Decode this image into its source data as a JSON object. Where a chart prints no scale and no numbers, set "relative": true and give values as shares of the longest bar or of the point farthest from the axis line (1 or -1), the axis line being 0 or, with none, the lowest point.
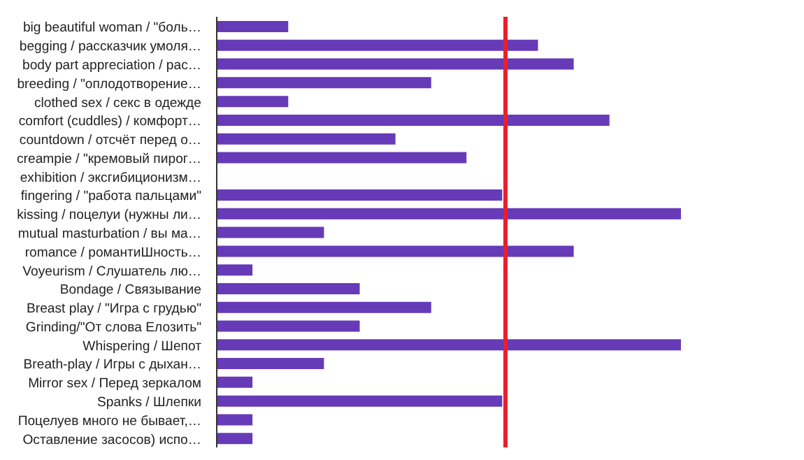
{
  "chart_data": {
    "type": "bar",
    "orientation": "horizontal",
    "relative": true,
    "categories": [
      "big beautiful woman / \"боль…",
      "begging / рассказчик умоля…",
      "body part appreciation / рас…",
      "breeding / \"оплодотворение…",
      "clothed sex / секс в одежде",
      "comfort (cuddles) / комфорт…",
      "countdown / отсчёт перед о…",
      "creampie / \"кремовый пирог…",
      "exhibition / эксгибиционизм…",
      "fingering / \"работа пальцами\"",
      "kissing / поцелуи (нужны ли…",
      "mutual masturbation / вы ма…",
      "romance / романтиШность…",
      "Voyeurism / Слушатель лю…",
      "Bondage / Связывание",
      "Breast play / \"Игра с грудью\"",
      "Grinding/\"От слова Елозить\"",
      "Whispering / Шепот",
      "Breath-play / Игры с дыхан…",
      "Mirror sex / Перед зеркалом",
      "Spanks / Шлепки",
      "Поцелуев много не бывает,…",
      "Оставление засосов) испо…"
    ],
    "values": [
      0.154,
      0.692,
      0.769,
      0.462,
      0.154,
      0.846,
      0.385,
      0.538,
      0,
      0.615,
      1,
      0.231,
      0.769,
      0.077,
      0.308,
      0.462,
      0.308,
      1,
      0.231,
      0.077,
      0.615,
      0.077,
      0.077
    ],
    "color": "#673ab7",
    "ref_lines": [
      {
        "axis": "x",
        "value": 0.622,
        "color": "#e8202a"
      }
    ]
  }
}
